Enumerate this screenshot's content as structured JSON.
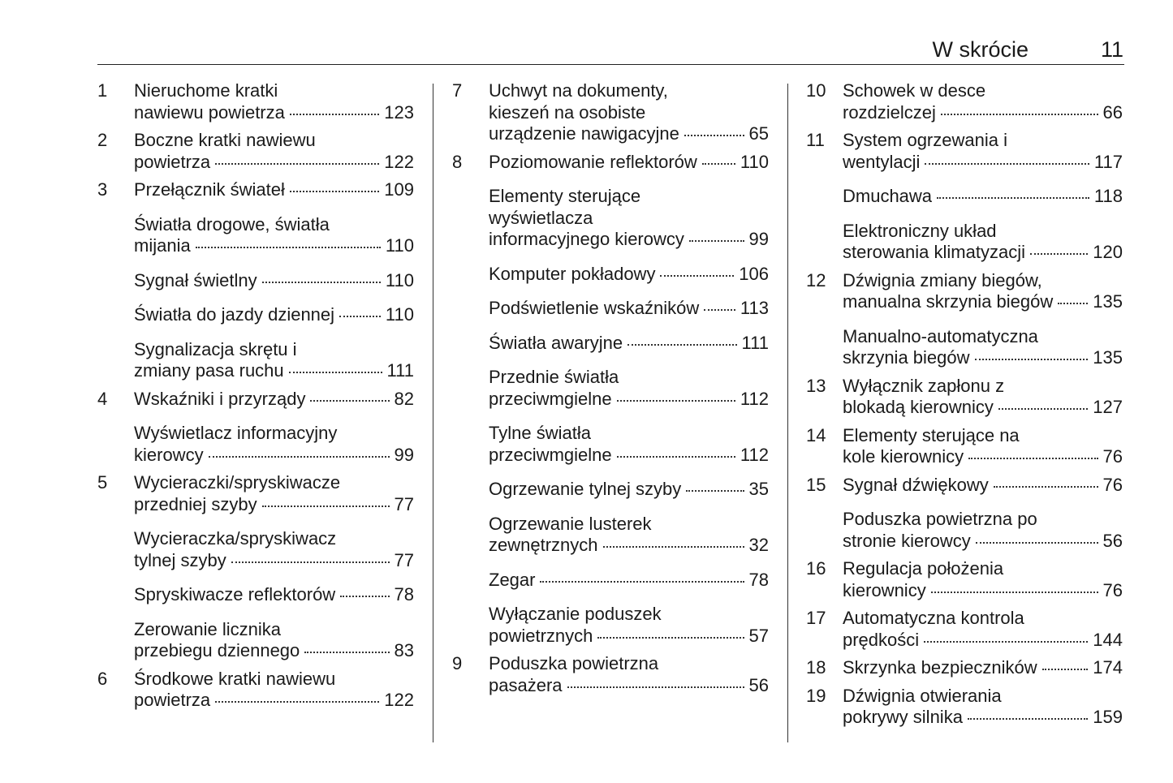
{
  "header": {
    "title": "W skrócie",
    "page": 11
  },
  "columns": [
    {
      "entries": [
        {
          "number": 1,
          "lines": [
            "Nieruchome kratki",
            "nawiewu powietrza"
          ],
          "page": 123
        },
        {
          "number": 2,
          "lines": [
            "Boczne kratki nawiewu",
            "powietrza"
          ],
          "page": 122
        },
        {
          "number": 3,
          "lines": [
            "Przełącznik świateł"
          ],
          "page": 109
        },
        {
          "lines": [
            "Światła drogowe, światła",
            "mijania"
          ],
          "page": 110
        },
        {
          "lines": [
            "Sygnał świetlny"
          ],
          "page": 110
        },
        {
          "lines": [
            "Światła do jazdy dziennej"
          ],
          "page": 110
        },
        {
          "lines": [
            "Sygnalizacja skrętu i",
            "zmiany pasa ruchu"
          ],
          "page": 111
        },
        {
          "number": 4,
          "lines": [
            "Wskaźniki i przyrządy"
          ],
          "page": 82
        },
        {
          "lines": [
            "Wyświetlacz informacyjny",
            "kierowcy"
          ],
          "page": 99
        },
        {
          "number": 5,
          "lines": [
            "Wycieraczki/spryskiwacze",
            "przedniej szyby"
          ],
          "page": 77
        },
        {
          "lines": [
            "Wycieraczka/spryskiwacz",
            "tylnej szyby"
          ],
          "page": 77
        },
        {
          "lines": [
            "Spryskiwacze reflektorów"
          ],
          "page": 78
        },
        {
          "lines": [
            "Zerowanie licznika",
            "przebiegu dziennego"
          ],
          "page": 83
        },
        {
          "number": 6,
          "lines": [
            "Środkowe kratki nawiewu",
            "powietrza"
          ],
          "page": 122
        }
      ]
    },
    {
      "entries": [
        {
          "number": 7,
          "lines": [
            "Uchwyt na dokumenty,",
            "kieszeń na osobiste",
            "urządzenie nawigacyjne"
          ],
          "page": 65
        },
        {
          "number": 8,
          "lines": [
            "Poziomowanie reflektorów"
          ],
          "page": 110
        },
        {
          "lines": [
            "Elementy sterujące",
            "wyświetlacza",
            "informacyjnego kierowcy"
          ],
          "page": 99
        },
        {
          "lines": [
            "Komputer pokładowy"
          ],
          "page": 106
        },
        {
          "lines": [
            "Podświetlenie wskaźników"
          ],
          "page": 113
        },
        {
          "lines": [
            "Światła awaryjne"
          ],
          "page": 111
        },
        {
          "lines": [
            "Przednie światła",
            "przeciwmgielne"
          ],
          "page": 112
        },
        {
          "lines": [
            "Tylne światła",
            "przeciwmgielne"
          ],
          "page": 112
        },
        {
          "lines": [
            "Ogrzewanie tylnej szyby"
          ],
          "page": 35
        },
        {
          "lines": [
            "Ogrzewanie lusterek",
            "zewnętrznych"
          ],
          "page": 32
        },
        {
          "lines": [
            "Zegar"
          ],
          "page": 78
        },
        {
          "lines": [
            "Wyłączanie poduszek",
            "powietrznych"
          ],
          "page": 57
        },
        {
          "number": 9,
          "lines": [
            "Poduszka powietrzna",
            "pasażera"
          ],
          "page": 56
        }
      ]
    },
    {
      "entries": [
        {
          "number": 10,
          "lines": [
            "Schowek w desce",
            "rozdzielczej"
          ],
          "page": 66
        },
        {
          "number": 11,
          "lines": [
            "System ogrzewania i",
            "wentylacji"
          ],
          "page": 117
        },
        {
          "lines": [
            "Dmuchawa"
          ],
          "page": 118
        },
        {
          "lines": [
            "Elektroniczny układ",
            "sterowania klimatyzacji"
          ],
          "page": 120
        },
        {
          "number": 12,
          "lines": [
            "Dźwignia zmiany biegów,",
            "manualna skrzynia biegów"
          ],
          "page": 135
        },
        {
          "lines": [
            "Manualno-automatyczna",
            "skrzynia biegów"
          ],
          "page": 135
        },
        {
          "number": 13,
          "lines": [
            "Wyłącznik zapłonu z",
            "blokadą kierownicy"
          ],
          "page": 127
        },
        {
          "number": 14,
          "lines": [
            "Elementy sterujące na",
            "kole kierownicy"
          ],
          "page": 76
        },
        {
          "number": 15,
          "lines": [
            "Sygnał dźwiękowy"
          ],
          "page": 76
        },
        {
          "lines": [
            "Poduszka powietrzna po",
            "stronie kierowcy"
          ],
          "page": 56
        },
        {
          "number": 16,
          "lines": [
            "Regulacja położenia",
            "kierownicy"
          ],
          "page": 76
        },
        {
          "number": 17,
          "lines": [
            "Automatyczna kontrola",
            "prędkości"
          ],
          "page": 144
        },
        {
          "number": 18,
          "lines": [
            "Skrzynka bezpieczników"
          ],
          "page": 174
        },
        {
          "number": 19,
          "lines": [
            "Dźwignia otwierania",
            "pokrywy silnika"
          ],
          "page": 159
        }
      ]
    }
  ]
}
